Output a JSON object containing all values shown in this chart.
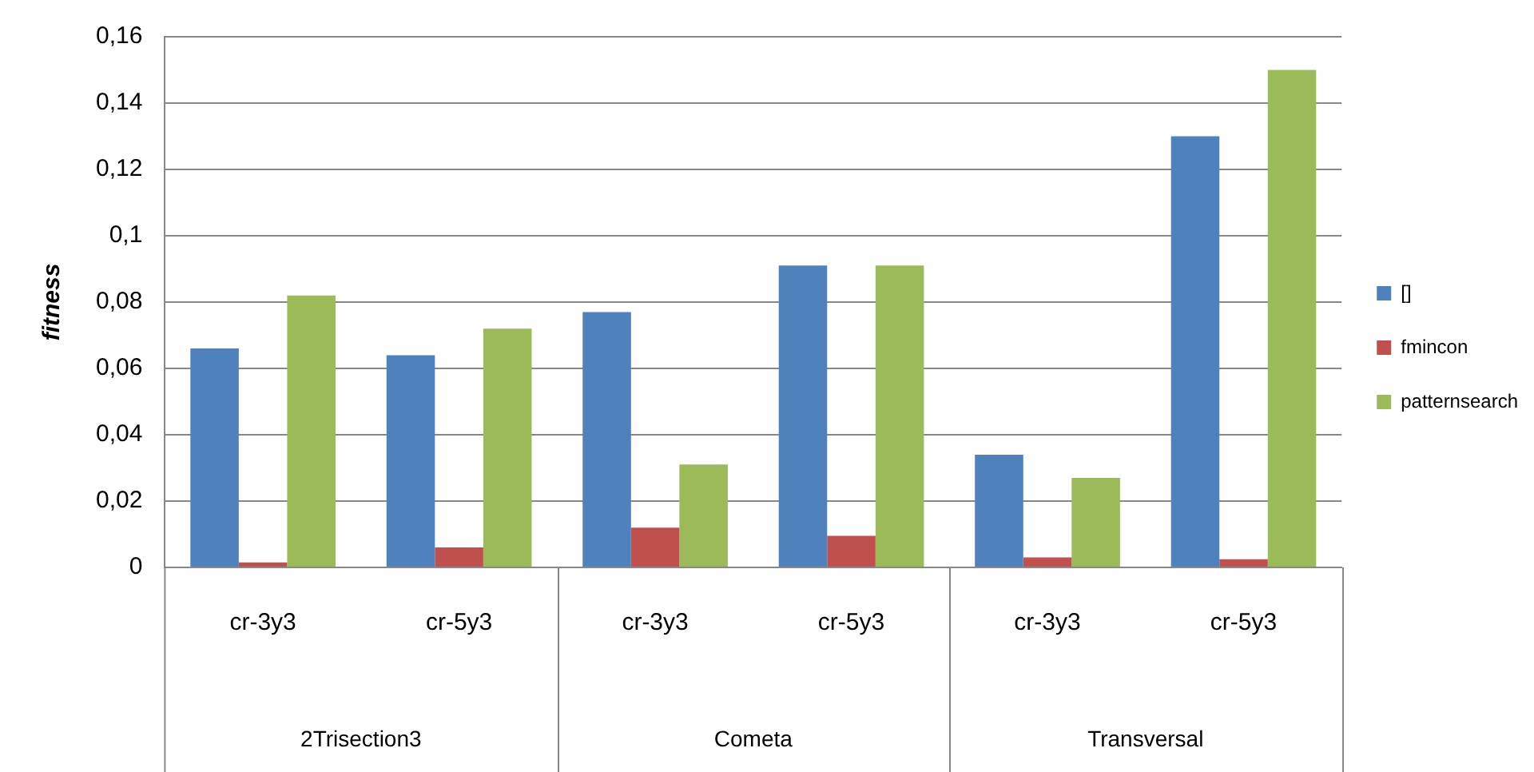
{
  "chart_data": {
    "type": "bar",
    "ylabel": "fitness",
    "categories": [
      "cr-3y3",
      "cr-5y3",
      "cr-3y3",
      "cr-5y3",
      "cr-3y3",
      "cr-5y3"
    ],
    "series": [
      {
        "name": "[]",
        "color": "#4f81bd",
        "values": [
          0.066,
          0.064,
          0.077,
          0.091,
          0.034,
          0.13
        ]
      },
      {
        "name": "fmincon",
        "color": "#c0504d",
        "values": [
          0.0015,
          0.006,
          0.012,
          0.0095,
          0.003,
          0.0025
        ]
      },
      {
        "name": "patternsearch",
        "color": "#9bbb59",
        "values": [
          0.082,
          0.072,
          0.031,
          0.091,
          0.027,
          0.15
        ]
      }
    ],
    "ylim": [
      0,
      0.16
    ],
    "yticks": [
      0,
      {
        "value": 0.02,
        "label": "0,02"
      },
      {
        "value": 0.04,
        "label": "0,04"
      },
      {
        "value": 0.06,
        "label": "0,06"
      },
      {
        "value": 0.08,
        "label": "0,08"
      },
      {
        "value": 0.1,
        "label": "0,1"
      },
      {
        "value": 0.12,
        "label": "0,12"
      },
      {
        "value": 0.14,
        "label": "0,14"
      },
      {
        "value": 0.16,
        "label": "0,16"
      }
    ],
    "annotations": [
      "2Trisection3",
      "Cometa",
      "Transversal"
    ],
    "grid": "y",
    "legend": "right"
  }
}
